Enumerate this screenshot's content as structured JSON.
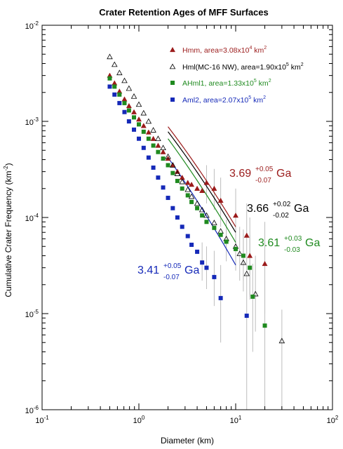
{
  "chart_data": {
    "type": "scatter",
    "title": "Crater Retention Ages of MFF Surfaces",
    "xlabel": "Diameter (km)",
    "ylabel": "Cumulative Crater Frequency (km",
    "ylabel_sup": "-2",
    "ylabel_close": ")",
    "x_scale": "log",
    "y_scale": "log",
    "xlim": [
      0.1,
      100
    ],
    "ylim": [
      1e-06,
      0.01
    ],
    "x_ticks": [
      {
        "value": 0.1,
        "base": "10",
        "exp": "-1"
      },
      {
        "value": 1,
        "base": "10",
        "exp": "0"
      },
      {
        "value": 10,
        "base": "10",
        "exp": "1"
      },
      {
        "value": 100,
        "base": "10",
        "exp": "2"
      }
    ],
    "y_ticks": [
      {
        "value": 1e-06,
        "base": "10",
        "exp": "-6"
      },
      {
        "value": 1e-05,
        "base": "10",
        "exp": "-5"
      },
      {
        "value": 0.0001,
        "base": "10",
        "exp": "-4"
      },
      {
        "value": 0.001,
        "base": "10",
        "exp": "-3"
      },
      {
        "value": 0.01,
        "base": "10",
        "exp": "-2"
      }
    ],
    "legend_position": "top-right",
    "series": [
      {
        "id": "hmm",
        "legend": {
          "text": "Hmm, area=3.08x10",
          "exp": "4",
          "unit": " km",
          "unit_exp": "2"
        },
        "marker": "triangle-filled",
        "color": "#9b1b1b",
        "points": [
          [
            0.5,
            0.003
          ],
          [
            0.56,
            0.0025
          ],
          [
            0.63,
            0.00205
          ],
          [
            0.71,
            0.0017
          ],
          [
            0.79,
            0.00145
          ],
          [
            0.89,
            0.00125
          ],
          [
            1.0,
            0.00105
          ],
          [
            1.12,
            0.0009
          ],
          [
            1.26,
            0.00077
          ],
          [
            1.41,
            0.00066
          ],
          [
            1.58,
            0.00056
          ],
          [
            1.78,
            0.00048
          ],
          [
            2.0,
            0.00041
          ],
          [
            2.24,
            0.00035
          ],
          [
            2.5,
            0.0003
          ],
          [
            2.8,
            0.00026
          ],
          [
            3.2,
            0.00023
          ],
          [
            3.5,
            0.00022
          ],
          [
            4.0,
            0.0002
          ],
          [
            4.5,
            0.00019
          ],
          [
            5.0,
            0.00023
          ],
          [
            6.0,
            0.0002
          ],
          [
            7.0,
            0.00015
          ],
          [
            10.0,
            0.000105
          ],
          [
            13.0,
            6.5e-05
          ],
          [
            14.0,
            4e-05
          ],
          [
            20.0,
            3.3e-05
          ]
        ],
        "errorbars": [
          [
            5.0,
            0.00014,
            0.00035
          ],
          [
            6.0,
            0.00012,
            0.00032
          ],
          [
            7.0,
            8e-05,
            0.00026
          ],
          [
            10.0,
            5e-05,
            0.0002
          ],
          [
            13.0,
            2.8e-05,
            0.00014
          ],
          [
            14.0,
            1.4e-05,
            0.0001
          ],
          [
            20.0,
            1e-05,
            9e-05
          ]
        ],
        "fit": {
          "x": [
            2.0,
            10.0
          ],
          "y": [
            0.00088,
            8e-05
          ]
        },
        "age": {
          "value": "3.69",
          "plus": "+0.05",
          "minus": "-0.07",
          "unit": "Ga"
        }
      },
      {
        "id": "hml",
        "legend": {
          "text": "Hml(MC-16 NW), area=1.90x10",
          "exp": "5",
          "unit": " km",
          "unit_exp": "2"
        },
        "marker": "triangle-open",
        "color": "#000000",
        "points": [
          [
            0.5,
            0.0047
          ],
          [
            0.56,
            0.0039
          ],
          [
            0.63,
            0.0032
          ],
          [
            0.71,
            0.00265
          ],
          [
            0.79,
            0.0022
          ],
          [
            0.89,
            0.00182
          ],
          [
            1.0,
            0.0015
          ],
          [
            1.12,
            0.00122
          ],
          [
            1.26,
            0.001
          ],
          [
            1.41,
            0.00081
          ],
          [
            1.58,
            0.00066
          ],
          [
            1.78,
            0.00053
          ],
          [
            2.0,
            0.00043
          ],
          [
            2.24,
            0.00035
          ],
          [
            2.5,
            0.000285
          ],
          [
            2.8,
            0.000235
          ],
          [
            3.2,
            0.000195
          ],
          [
            3.5,
            0.000165
          ],
          [
            4.0,
            0.00014
          ],
          [
            4.5,
            0.00012
          ],
          [
            5.0,
            0.000105
          ],
          [
            6.0,
            8.8e-05
          ],
          [
            7.0,
            7.2e-05
          ],
          [
            8.0,
            6e-05
          ],
          [
            10.0,
            5e-05
          ],
          [
            11.0,
            4.2e-05
          ],
          [
            12.0,
            3.4e-05
          ],
          [
            13.0,
            2.6e-05
          ],
          [
            16.0,
            1.6e-05
          ],
          [
            30.0,
            5.2e-06
          ]
        ],
        "errorbars": [
          [
            11.0,
            2.2e-05,
            8e-05
          ],
          [
            12.0,
            1.7e-05,
            6.8e-05
          ],
          [
            16.0,
            6.5e-06,
            4e-05
          ],
          [
            30.0,
            1e-06,
            1.1e-05
          ]
        ],
        "fit": {
          "x": [
            2.0,
            10.0
          ],
          "y": [
            0.00078,
            7e-05
          ]
        },
        "age": {
          "value": "3.66",
          "plus": "+0.02",
          "minus": "-0.02",
          "unit": "Ga"
        }
      },
      {
        "id": "ahml1",
        "legend": {
          "text": "AHml1, area=1.33x10",
          "exp": "5",
          "unit": " km",
          "unit_exp": "2"
        },
        "marker": "square-filled",
        "color": "#1f8a1f",
        "points": [
          [
            0.5,
            0.0028
          ],
          [
            0.56,
            0.0023
          ],
          [
            0.63,
            0.0019
          ],
          [
            0.71,
            0.00155
          ],
          [
            0.79,
            0.0013
          ],
          [
            0.89,
            0.0011
          ],
          [
            1.0,
            0.00093
          ],
          [
            1.12,
            0.00078
          ],
          [
            1.26,
            0.00066
          ],
          [
            1.41,
            0.00056
          ],
          [
            1.58,
            0.00048
          ],
          [
            1.78,
            0.00041
          ],
          [
            2.0,
            0.00035
          ],
          [
            2.24,
            0.00029
          ],
          [
            2.5,
            0.00024
          ],
          [
            2.8,
            0.0002
          ],
          [
            3.2,
            0.00017
          ],
          [
            3.5,
            0.000145
          ],
          [
            4.0,
            0.000125
          ],
          [
            4.5,
            0.000105
          ],
          [
            5.0,
            9e-05
          ],
          [
            6.0,
            7.8e-05
          ],
          [
            7.0,
            6.6e-05
          ],
          [
            8.0,
            5.6e-05
          ],
          [
            10.0,
            4.7e-05
          ],
          [
            12.0,
            4e-05
          ],
          [
            14.0,
            3e-05
          ],
          [
            15.0,
            1.5e-05
          ],
          [
            20.0,
            7.5e-06
          ]
        ],
        "errorbars": [
          [
            8.0,
            3.5e-05,
            9.5e-05
          ],
          [
            10.0,
            2.8e-05,
            8.5e-05
          ],
          [
            12.0,
            2.2e-05,
            7.5e-05
          ],
          [
            14.0,
            1.5e-05,
            6.5e-05
          ],
          [
            15.0,
            4e-06,
            3.3e-05
          ],
          [
            20.0,
            1e-06,
            2.2e-05
          ]
        ],
        "fit": {
          "x": [
            2.0,
            10.0
          ],
          "y": [
            0.00066,
            5.5e-05
          ]
        },
        "age": {
          "value": "3.61",
          "plus": "+0.03",
          "minus": "-0.03",
          "unit": "Ga"
        }
      },
      {
        "id": "aml2",
        "legend": {
          "text": "Aml2, area=2.07x10",
          "exp": "5",
          "unit": " km",
          "unit_exp": "2"
        },
        "marker": "square-filled",
        "color": "#1529b8",
        "points": [
          [
            0.5,
            0.0023
          ],
          [
            0.56,
            0.0019
          ],
          [
            0.63,
            0.00155
          ],
          [
            0.71,
            0.00125
          ],
          [
            0.79,
            0.001
          ],
          [
            0.89,
            0.00082
          ],
          [
            1.0,
            0.00066
          ],
          [
            1.12,
            0.00053
          ],
          [
            1.26,
            0.00042
          ],
          [
            1.41,
            0.00033
          ],
          [
            1.58,
            0.00026
          ],
          [
            1.78,
            0.000205
          ],
          [
            2.0,
            0.00016
          ],
          [
            2.24,
            0.000125
          ],
          [
            2.5,
            0.0001
          ],
          [
            2.8,
            8e-05
          ],
          [
            3.2,
            6.4e-05
          ],
          [
            3.5,
            5.2e-05
          ],
          [
            4.0,
            4.4e-05
          ],
          [
            4.5,
            3.4e-05
          ],
          [
            5.0,
            3e-05
          ],
          [
            6.0,
            2.4e-05
          ],
          [
            7.0,
            1.45e-05
          ],
          [
            13.0,
            9.5e-06
          ]
        ],
        "errorbars": [
          [
            4.5,
            2.2e-05,
            5.5e-05
          ],
          [
            5.0,
            1.8e-05,
            5e-05
          ],
          [
            6.0,
            1.2e-05,
            4.5e-05
          ],
          [
            7.0,
            5e-06,
            3.2e-05
          ],
          [
            13.0,
            1e-06,
            2.6e-05
          ]
        ],
        "fit": {
          "x": [
            2.0,
            10.0
          ],
          "y": [
            0.00042,
            3.2e-05
          ]
        },
        "age": {
          "value": "3.41",
          "plus": "+0.05",
          "minus": "-0.07",
          "unit": "Ga"
        }
      }
    ]
  }
}
